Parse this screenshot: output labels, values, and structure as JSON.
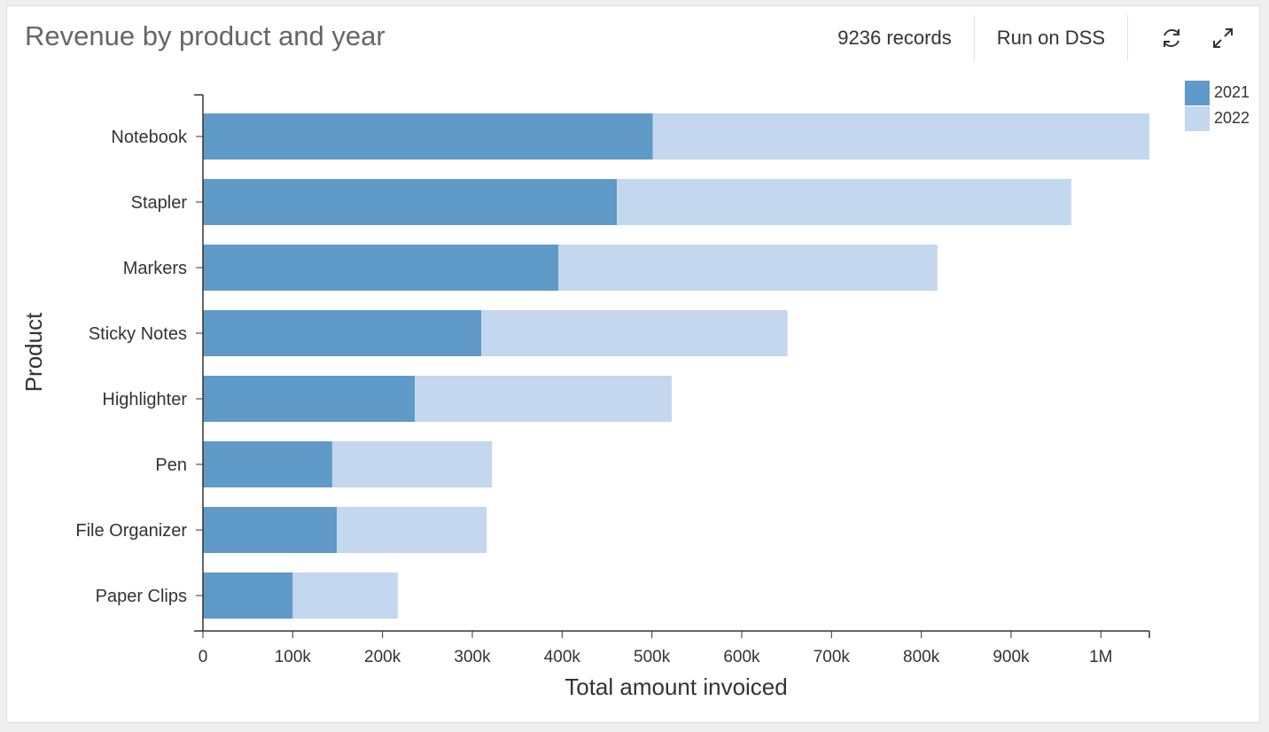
{
  "header": {
    "title": "Revenue by product and year",
    "records_label": "9236 records",
    "run_label": "Run on DSS",
    "refresh_icon": "refresh-icon",
    "expand_icon": "expand-icon"
  },
  "colors": {
    "series_2021": "#5f9ac8",
    "series_2022": "#c3d7ee"
  },
  "chart_data": {
    "type": "bar",
    "orientation": "horizontal",
    "stacked": true,
    "title": "Revenue by product and year",
    "xlabel": "Total amount invoiced",
    "ylabel": "Product",
    "categories": [
      "Notebook",
      "Stapler",
      "Markers",
      "Sticky Notes",
      "Highlighter",
      "Pen",
      "File Organizer",
      "Paper Clips"
    ],
    "series": [
      {
        "name": "2021",
        "color": "#5f9ac8",
        "values": [
          501000,
          461000,
          396000,
          310000,
          236000,
          144000,
          149000,
          100000
        ]
      },
      {
        "name": "2022",
        "color": "#c3d7ee",
        "values": [
          553000,
          506000,
          422000,
          341000,
          286000,
          178000,
          167000,
          117000
        ]
      }
    ],
    "xlim": [
      0,
      1054000
    ],
    "x_ticks": [
      0,
      100000,
      200000,
      300000,
      400000,
      500000,
      600000,
      700000,
      800000,
      900000,
      1000000
    ],
    "x_tick_labels": [
      "0",
      "100k",
      "200k",
      "300k",
      "400k",
      "500k",
      "600k",
      "700k",
      "800k",
      "900k",
      "1M"
    ],
    "grid": false,
    "legend_position": "top-right"
  }
}
